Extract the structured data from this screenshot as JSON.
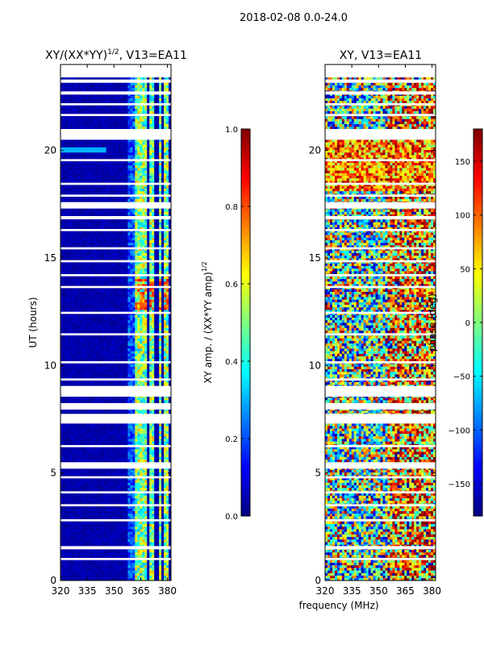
{
  "suptitle": "2018-02-08 0.0-24.0",
  "xlabel_shared": "frequency (MHz)",
  "colors": {
    "jet": [
      "#00007f",
      "#0000ff",
      "#007fff",
      "#00ffff",
      "#7fff7f",
      "#ffff00",
      "#ff7f00",
      "#ff0000",
      "#7f0000"
    ],
    "flag": "#ffffff",
    "axis": "#000000"
  },
  "chart_data": [
    {
      "type": "heatmap",
      "title_main": "XY/(XX*YY)",
      "title_sup": "1/2",
      "title_tail": ", V13=EA11",
      "xlabel": "",
      "ylabel": "UT (hours)",
      "xlim": [
        320,
        382
      ],
      "ylim": [
        0,
        24
      ],
      "x_ticks": [
        320,
        335,
        350,
        365,
        380
      ],
      "y_ticks": [
        0,
        5,
        10,
        15,
        20
      ],
      "colorbar": {
        "label_main": "XY amp. / (XX*YY amp)",
        "label_sup": "1/2",
        "range": [
          0.0,
          1.0
        ],
        "ticks": [
          "0.0",
          "0.2",
          "0.4",
          "0.6",
          "0.8",
          "1.0"
        ],
        "tick_values": [
          0.0,
          0.2,
          0.4,
          0.6,
          0.8,
          1.0
        ]
      },
      "flagged_hours": [
        [
          23.15,
          23.3
        ],
        [
          22.6,
          22.75
        ],
        [
          22.1,
          22.2
        ],
        [
          21.6,
          21.7
        ],
        [
          20.5,
          21.0
        ],
        [
          19.5,
          19.6
        ],
        [
          18.4,
          18.5
        ],
        [
          17.85,
          17.95
        ],
        [
          17.3,
          17.6
        ],
        [
          16.8,
          16.95
        ],
        [
          16.25,
          16.35
        ],
        [
          15.4,
          15.5
        ],
        [
          14.8,
          14.9
        ],
        [
          14.15,
          14.25
        ],
        [
          13.6,
          13.7
        ],
        [
          12.4,
          12.5
        ],
        [
          11.4,
          11.5
        ],
        [
          10.1,
          10.2
        ],
        [
          9.3,
          9.4
        ],
        [
          8.55,
          9.05
        ],
        [
          7.95,
          8.25
        ],
        [
          7.3,
          7.75
        ],
        [
          6.2,
          6.3
        ],
        [
          5.2,
          5.5
        ],
        [
          4.75,
          4.85
        ],
        [
          4.05,
          4.15
        ],
        [
          3.45,
          3.55
        ],
        [
          2.75,
          2.85
        ],
        [
          1.45,
          1.6
        ],
        [
          0.95,
          1.05
        ]
      ],
      "hot_bands_MHz": [
        [
          362,
          368
        ],
        [
          370,
          373
        ],
        [
          375,
          377
        ],
        [
          378,
          380
        ]
      ],
      "note": "amplitude ~0 (dark blue) below 360 MHz; 0.3-0.8 in RFI bands between 362-380 MHz"
    },
    {
      "type": "heatmap",
      "title_main": "XY, V13=EA11",
      "xlabel": "frequency (MHz)",
      "ylabel": "",
      "xlim": [
        320,
        382
      ],
      "ylim": [
        0,
        24
      ],
      "x_ticks": [
        320,
        335,
        350,
        365,
        380
      ],
      "y_ticks": [
        0,
        5,
        10,
        15,
        20
      ],
      "colorbar": {
        "label_main": "phase (deg)",
        "range": [
          -180,
          180
        ],
        "ticks": [
          "150",
          "100",
          "50",
          "0",
          "−50",
          "−100",
          "−150"
        ],
        "tick_values": [
          150,
          100,
          50,
          0,
          -50,
          -100,
          -150
        ]
      },
      "flagged_hours": [
        [
          23.15,
          23.3
        ],
        [
          22.6,
          22.75
        ],
        [
          22.1,
          22.2
        ],
        [
          21.6,
          21.7
        ],
        [
          20.5,
          21.0
        ],
        [
          19.5,
          19.6
        ],
        [
          18.4,
          18.5
        ],
        [
          17.85,
          17.95
        ],
        [
          17.3,
          17.6
        ],
        [
          16.8,
          16.95
        ],
        [
          16.25,
          16.35
        ],
        [
          15.4,
          15.5
        ],
        [
          14.8,
          14.9
        ],
        [
          14.15,
          14.25
        ],
        [
          13.6,
          13.7
        ],
        [
          12.4,
          12.5
        ],
        [
          11.4,
          11.5
        ],
        [
          10.1,
          10.2
        ],
        [
          9.3,
          9.4
        ],
        [
          8.55,
          9.05
        ],
        [
          7.95,
          8.25
        ],
        [
          7.3,
          7.75
        ],
        [
          6.2,
          6.3
        ],
        [
          5.2,
          5.5
        ],
        [
          4.75,
          4.85
        ],
        [
          4.05,
          4.15
        ],
        [
          3.45,
          3.55
        ],
        [
          2.75,
          2.85
        ],
        [
          1.45,
          1.6
        ],
        [
          0.95,
          1.05
        ]
      ],
      "note": "phase wraps across full ±180 deg; mostly warm (positive) above 355 MHz"
    }
  ]
}
